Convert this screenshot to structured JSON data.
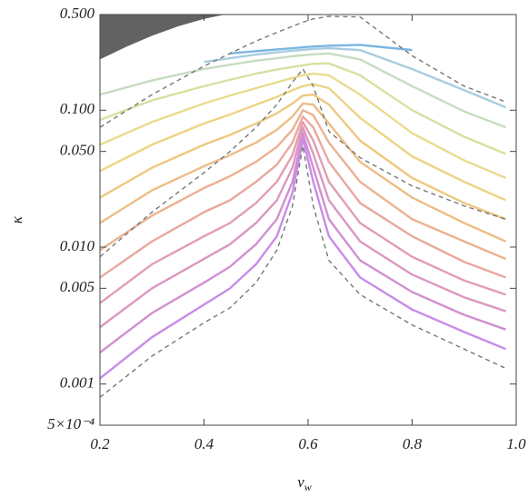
{
  "chart_data": {
    "type": "line",
    "xlabel": "v",
    "xlabel_subscript": "w",
    "ylabel": "κ",
    "xlim": [
      0.2,
      1.0
    ],
    "xticks": [
      0.2,
      0.4,
      0.6,
      0.8,
      {
        "value": 1.0,
        "label": "1.0"
      }
    ],
    "ylim": [
      0.0005,
      0.5
    ],
    "log_y": true,
    "yticks": [
      {
        "value": 0.0005,
        "label": "5×10⁻⁴"
      },
      0.001,
      0.005,
      {
        "value": 0.01,
        "label": "0.010"
      },
      {
        "value": 0.05,
        "label": "0.050"
      },
      {
        "value": 0.1,
        "label": "0.100"
      },
      {
        "value": 0.5,
        "label": "0.500"
      }
    ],
    "x": [
      0.2,
      0.3,
      0.4,
      0.45,
      0.5,
      0.54,
      0.57,
      0.59,
      0.61,
      0.64,
      0.7,
      0.8,
      0.9,
      0.98
    ],
    "regions": [
      {
        "color": "#5a5a5a",
        "x": [
          0.2,
          0.25,
          0.3,
          0.35,
          0.4,
          0.44
        ],
        "values": [
          0.235,
          0.29,
          0.35,
          0.41,
          0.465,
          0.5
        ]
      }
    ],
    "series": [
      {
        "color": "#c98be8",
        "values": [
          0.0011,
          0.0022,
          0.0038,
          0.005,
          0.0075,
          0.012,
          0.025,
          0.062,
          0.03,
          0.012,
          0.006,
          0.0035,
          0.0024,
          0.0018
        ]
      },
      {
        "color": "#d08fd2",
        "values": [
          0.0017,
          0.0033,
          0.0055,
          0.0072,
          0.0105,
          0.016,
          0.03,
          0.068,
          0.038,
          0.016,
          0.008,
          0.0047,
          0.0032,
          0.0025
        ]
      },
      {
        "color": "#db97c0",
        "values": [
          0.0026,
          0.005,
          0.0082,
          0.0105,
          0.015,
          0.022,
          0.038,
          0.075,
          0.048,
          0.022,
          0.011,
          0.0063,
          0.0043,
          0.0034
        ]
      },
      {
        "color": "#e29eb0",
        "values": [
          0.0039,
          0.0075,
          0.012,
          0.015,
          0.021,
          0.03,
          0.047,
          0.082,
          0.06,
          0.03,
          0.015,
          0.0085,
          0.0057,
          0.0045
        ]
      },
      {
        "color": "#e8a89f",
        "values": [
          0.006,
          0.011,
          0.018,
          0.022,
          0.03,
          0.04,
          0.058,
          0.09,
          0.075,
          0.042,
          0.021,
          0.012,
          0.0078,
          0.006
        ]
      },
      {
        "color": "#ebb290",
        "values": [
          0.0095,
          0.017,
          0.027,
          0.033,
          0.042,
          0.054,
          0.072,
          0.1,
          0.092,
          0.058,
          0.03,
          0.016,
          0.011,
          0.0082
        ]
      },
      {
        "color": "#edbd85",
        "values": [
          0.015,
          0.026,
          0.039,
          0.047,
          0.058,
          0.072,
          0.09,
          0.112,
          0.11,
          0.08,
          0.042,
          0.023,
          0.015,
          0.011
        ]
      },
      {
        "color": "#eec880",
        "values": [
          0.023,
          0.038,
          0.056,
          0.066,
          0.08,
          0.095,
          0.112,
          0.128,
          0.13,
          0.11,
          0.06,
          0.032,
          0.021,
          0.016
        ]
      },
      {
        "color": "#edd384",
        "values": [
          0.036,
          0.056,
          0.08,
          0.093,
          0.11,
          0.125,
          0.14,
          0.15,
          0.155,
          0.145,
          0.088,
          0.046,
          0.03,
          0.022
        ]
      },
      {
        "color": "#e8dc8e",
        "values": [
          0.056,
          0.082,
          0.112,
          0.128,
          0.145,
          0.16,
          0.172,
          0.18,
          0.185,
          0.18,
          0.13,
          0.068,
          0.043,
          0.032
        ]
      },
      {
        "color": "#dadf9f",
        "values": [
          0.085,
          0.118,
          0.15,
          0.167,
          0.185,
          0.198,
          0.207,
          0.213,
          0.218,
          0.22,
          0.18,
          0.1,
          0.064,
          0.048
        ]
      },
      {
        "color": "#c6dcc0",
        "values": [
          0.13,
          0.165,
          0.2,
          0.215,
          0.23,
          0.24,
          0.248,
          0.252,
          0.256,
          0.26,
          0.235,
          0.15,
          0.098,
          0.075
        ]
      },
      {
        "color": "#a8cde0",
        "values": [
          null,
          null,
          0.225,
          0.24,
          0.255,
          0.265,
          0.272,
          0.276,
          0.28,
          0.284,
          0.275,
          0.2,
          0.14,
          0.105
        ]
      },
      {
        "color": "#7ab5e2",
        "values": [
          null,
          null,
          null,
          0.26,
          0.27,
          0.278,
          0.284,
          0.288,
          0.292,
          0.296,
          0.3,
          0.275,
          null,
          null
        ]
      },
      {
        "color": "#777777",
        "dashed": true,
        "values": [
          0.075,
          0.13,
          0.21,
          0.26,
          0.32,
          0.37,
          0.41,
          0.44,
          0.465,
          0.485,
          0.48,
          0.25,
          0.15,
          0.115
        ]
      },
      {
        "color": "#777777",
        "dashed": true,
        "values": [
          0.0085,
          0.018,
          0.035,
          0.05,
          0.075,
          0.11,
          0.16,
          0.2,
          0.15,
          0.07,
          0.045,
          0.028,
          0.02,
          0.016
        ]
      },
      {
        "color": "#777777",
        "dashed": true,
        "values": [
          0.0008,
          0.0016,
          0.0028,
          0.0036,
          0.0055,
          0.0095,
          0.02,
          0.055,
          0.02,
          0.008,
          0.0045,
          0.0027,
          0.0018,
          0.0013
        ]
      }
    ]
  }
}
